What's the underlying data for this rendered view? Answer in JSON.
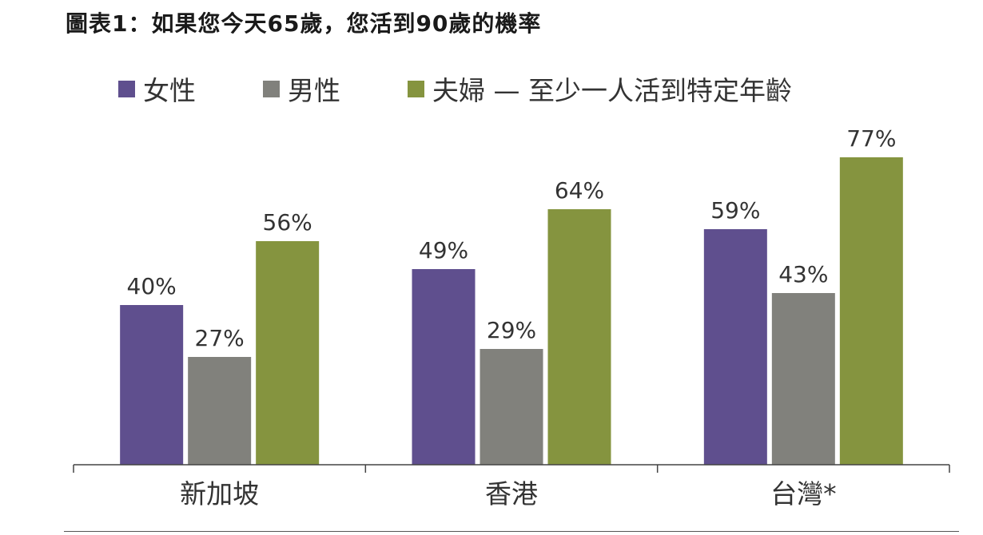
{
  "chart_data": {
    "type": "bar",
    "title": "圖表1：如果您今天65歲，您活到90歲的機率",
    "categories": [
      "新加坡",
      "香港",
      "台灣*"
    ],
    "series": [
      {
        "name": "女性",
        "color": "#5f4f8e",
        "values": [
          40,
          49,
          59
        ],
        "labels": [
          "40%",
          "49%",
          "59%"
        ]
      },
      {
        "name": "男性",
        "color": "#81817c",
        "values": [
          27,
          29,
          43
        ],
        "labels": [
          "27%",
          "29%",
          "43%"
        ]
      },
      {
        "name": "夫婦 — 至少一人活到特定年齡",
        "color": "#85943f",
        "values": [
          56,
          64,
          77
        ],
        "labels": [
          "56%",
          "64%",
          "77%"
        ]
      }
    ],
    "ylim": [
      0,
      100
    ],
    "legend_position": "top-left",
    "grid": false
  }
}
